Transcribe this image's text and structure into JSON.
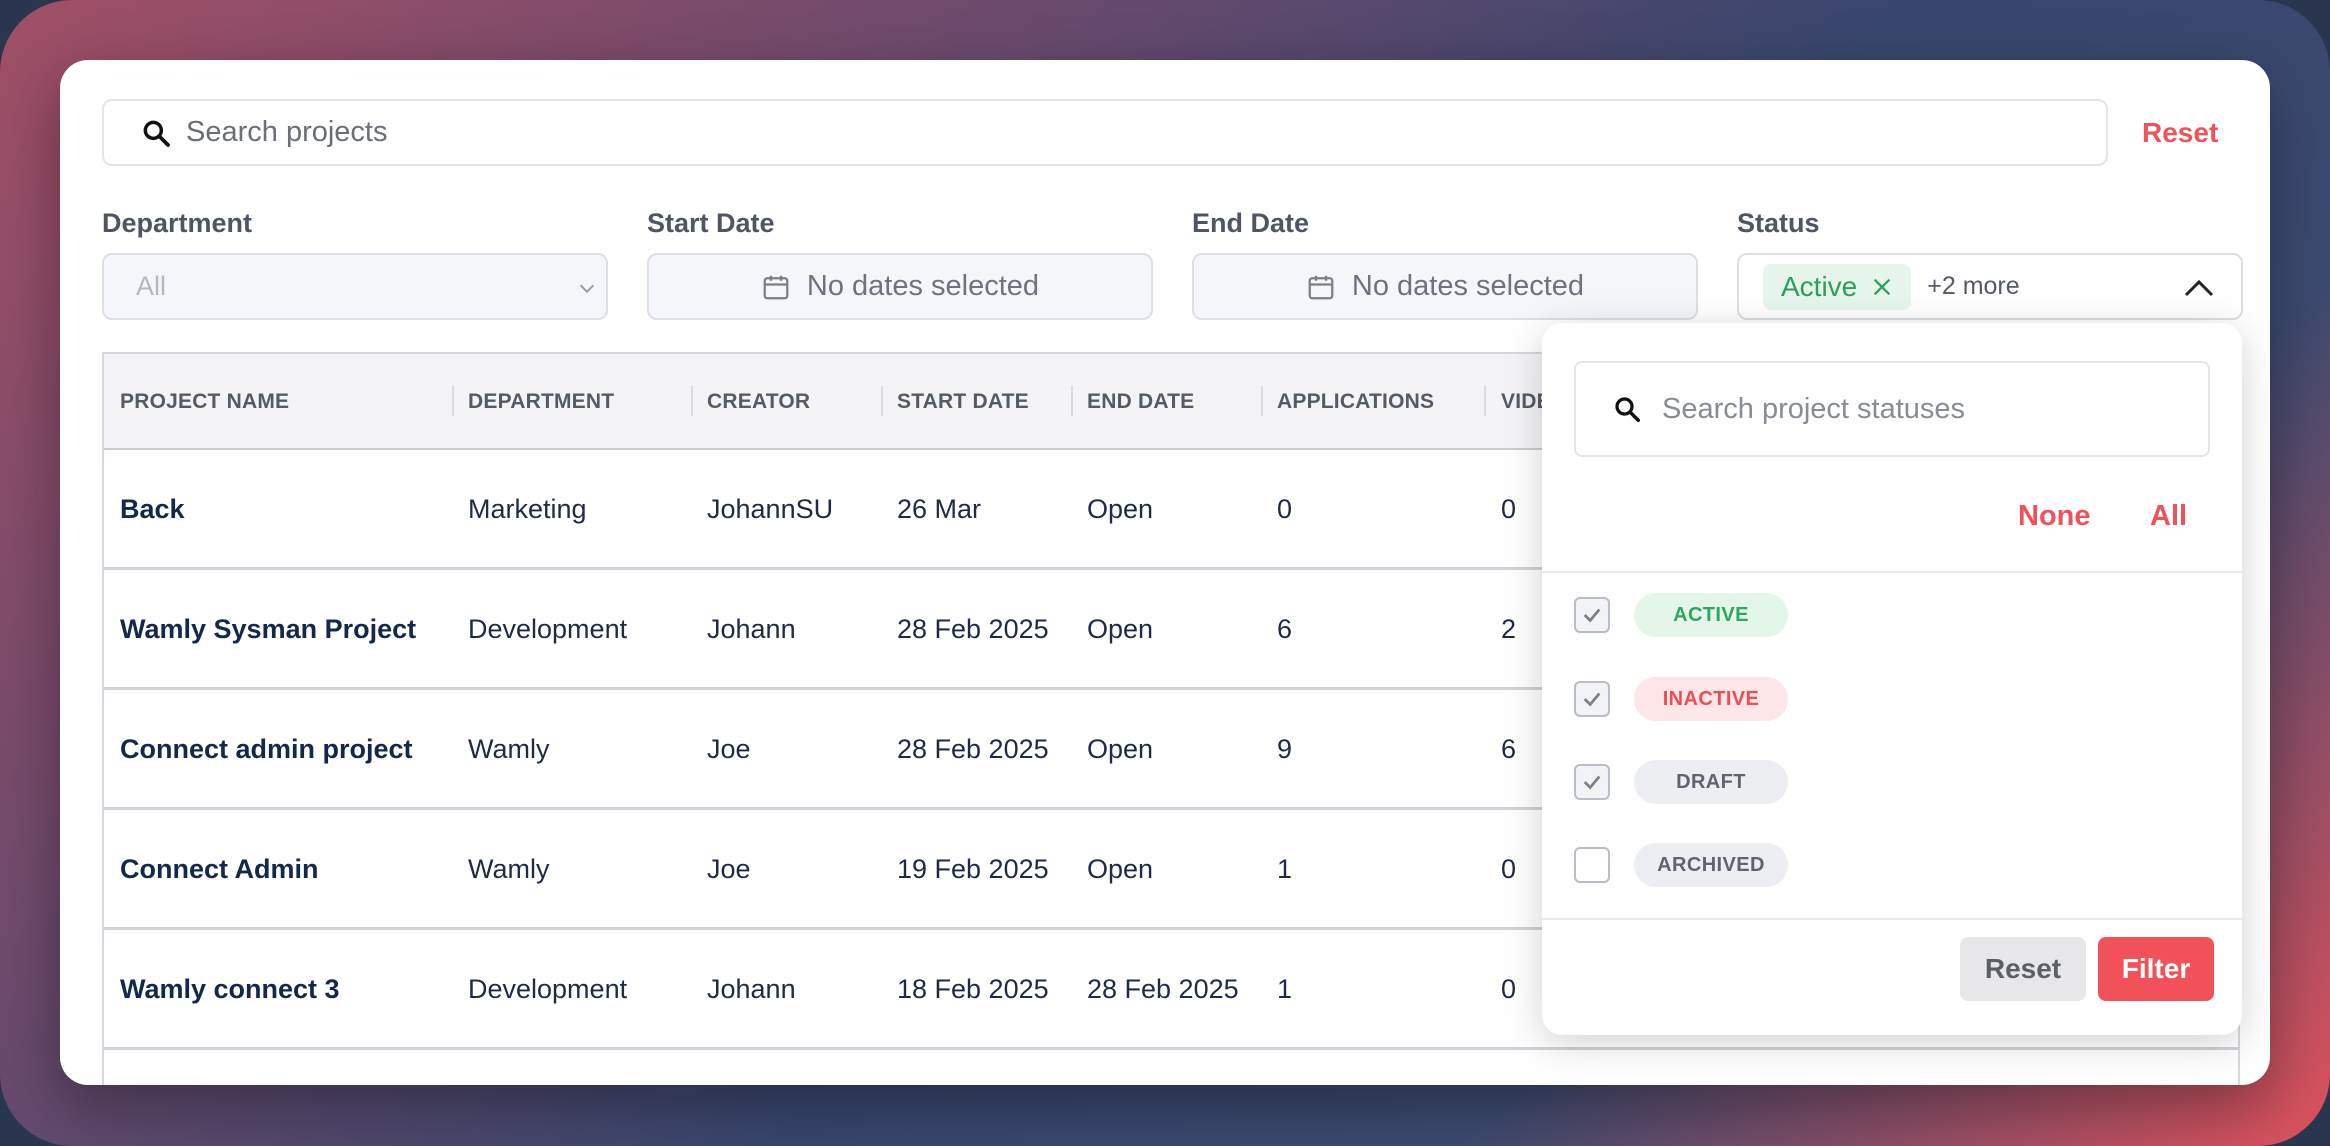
{
  "search": {
    "placeholder": "Search projects"
  },
  "reset_label": "Reset",
  "filters": {
    "department": {
      "label": "Department",
      "value": "All"
    },
    "start_date": {
      "label": "Start Date",
      "value": "No dates selected"
    },
    "end_date": {
      "label": "End Date",
      "value": "No dates selected"
    },
    "status": {
      "label": "Status",
      "chip": "Active",
      "more": "+2 more"
    }
  },
  "table": {
    "columns": [
      "PROJECT NAME",
      "DEPARTMENT",
      "CREATOR",
      "START DATE",
      "END DATE",
      "APPLICATIONS",
      "VIDE"
    ],
    "rows": [
      [
        "Back",
        "Marketing",
        "JohannSU",
        "26 Mar",
        "Open",
        "0",
        "0"
      ],
      [
        "Wamly Sysman Project",
        "Development",
        "Johann",
        "28 Feb 2025",
        "Open",
        "6",
        "2"
      ],
      [
        "Connect admin project",
        "Wamly",
        "Joe",
        "28 Feb 2025",
        "Open",
        "9",
        "6"
      ],
      [
        "Connect Admin",
        "Wamly",
        "Joe",
        "19 Feb 2025",
        "Open",
        "1",
        "0"
      ],
      [
        "Wamly connect 3",
        "Development",
        "Johann",
        "18 Feb 2025",
        "28 Feb 2025",
        "1",
        "0"
      ]
    ]
  },
  "status_dropdown": {
    "search_placeholder": "Search project statuses",
    "none_label": "None",
    "all_label": "All",
    "options": [
      {
        "label": "ACTIVE",
        "checked": true,
        "color": "#2fa85f",
        "bg": "#e4f6ea"
      },
      {
        "label": "INACTIVE",
        "checked": true,
        "color": "#ee4d55",
        "bg": "#fde6e7"
      },
      {
        "label": "DRAFT",
        "checked": true,
        "color": "#5e6470",
        "bg": "#eceef1"
      },
      {
        "label": "ARCHIVED",
        "checked": false,
        "color": "#5e6470",
        "bg": "#eceef1"
      }
    ],
    "reset_label": "Reset",
    "filter_label": "Filter"
  },
  "colors": {
    "accent": "#f1525a",
    "navy": "#14284b"
  }
}
